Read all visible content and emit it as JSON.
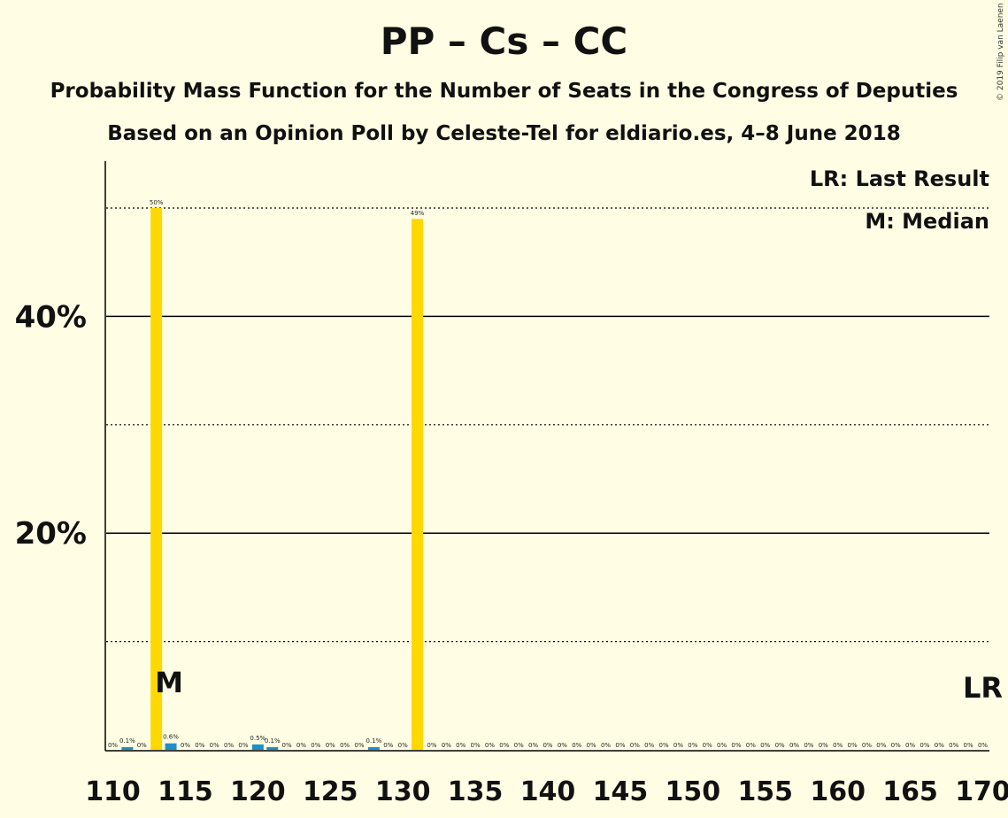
{
  "chart_data": {
    "type": "bar",
    "title": "PP – Cs – CC",
    "subtitle": "Probability Mass Function for the Number of Seats in the Congress of Deputies",
    "subtitle2": "Based on an Opinion Poll by Celeste-Tel for eldiario.es, 4–8 June 2018",
    "copyright": "© 2019 Filip van Laenen",
    "legend": {
      "lr": "LR: Last Result",
      "m": "M: Median",
      "position": "top-right"
    },
    "markers": {
      "median_label": "M",
      "median_seat": 114,
      "lr_label": "LR",
      "lr_seat": 170
    },
    "xlim": [
      110,
      170
    ],
    "ylim": [
      0,
      54
    ],
    "x_ticks": [
      110,
      115,
      120,
      125,
      130,
      135,
      140,
      145,
      150,
      155,
      160,
      165,
      170
    ],
    "y_ticks_labeled": [
      {
        "value": 20,
        "label": "20%"
      },
      {
        "value": 40,
        "label": "40%"
      }
    ],
    "y_gridlines_dotted": [
      10,
      30,
      50
    ],
    "colors": {
      "main": "#FFD800",
      "minor": "#1E8FC8",
      "background": "#FFFEE4",
      "axis": "#000000"
    },
    "bars": [
      {
        "x": 110,
        "value": 0,
        "label": "0%"
      },
      {
        "x": 111,
        "value": 0.1,
        "label": "0.1%"
      },
      {
        "x": 112,
        "value": 0,
        "label": "0%"
      },
      {
        "x": 113,
        "value": 50,
        "label": "50%"
      },
      {
        "x": 114,
        "value": 0.6,
        "label": "0.6%"
      },
      {
        "x": 115,
        "value": 0,
        "label": "0%"
      },
      {
        "x": 116,
        "value": 0,
        "label": "0%"
      },
      {
        "x": 117,
        "value": 0,
        "label": "0%"
      },
      {
        "x": 118,
        "value": 0,
        "label": "0%"
      },
      {
        "x": 119,
        "value": 0,
        "label": "0%"
      },
      {
        "x": 120,
        "value": 0.5,
        "label": "0.5%"
      },
      {
        "x": 121,
        "value": 0.1,
        "label": "0.1%"
      },
      {
        "x": 122,
        "value": 0,
        "label": "0%"
      },
      {
        "x": 123,
        "value": 0,
        "label": "0%"
      },
      {
        "x": 124,
        "value": 0,
        "label": "0%"
      },
      {
        "x": 125,
        "value": 0,
        "label": "0%"
      },
      {
        "x": 126,
        "value": 0,
        "label": "0%"
      },
      {
        "x": 127,
        "value": 0,
        "label": "0%"
      },
      {
        "x": 128,
        "value": 0.1,
        "label": "0.1%"
      },
      {
        "x": 129,
        "value": 0,
        "label": "0%"
      },
      {
        "x": 130,
        "value": 0,
        "label": "0%"
      },
      {
        "x": 131,
        "value": 49,
        "label": "49%"
      },
      {
        "x": 132,
        "value": 0,
        "label": "0%"
      },
      {
        "x": 133,
        "value": 0,
        "label": "0%"
      },
      {
        "x": 134,
        "value": 0,
        "label": "0%"
      },
      {
        "x": 135,
        "value": 0,
        "label": "0%"
      },
      {
        "x": 136,
        "value": 0,
        "label": "0%"
      },
      {
        "x": 137,
        "value": 0,
        "label": "0%"
      },
      {
        "x": 138,
        "value": 0,
        "label": "0%"
      },
      {
        "x": 139,
        "value": 0,
        "label": "0%"
      },
      {
        "x": 140,
        "value": 0,
        "label": "0%"
      },
      {
        "x": 141,
        "value": 0,
        "label": "0%"
      },
      {
        "x": 142,
        "value": 0,
        "label": "0%"
      },
      {
        "x": 143,
        "value": 0,
        "label": "0%"
      },
      {
        "x": 144,
        "value": 0,
        "label": "0%"
      },
      {
        "x": 145,
        "value": 0,
        "label": "0%"
      },
      {
        "x": 146,
        "value": 0,
        "label": "0%"
      },
      {
        "x": 147,
        "value": 0,
        "label": "0%"
      },
      {
        "x": 148,
        "value": 0,
        "label": "0%"
      },
      {
        "x": 149,
        "value": 0,
        "label": "0%"
      },
      {
        "x": 150,
        "value": 0,
        "label": "0%"
      },
      {
        "x": 151,
        "value": 0,
        "label": "0%"
      },
      {
        "x": 152,
        "value": 0,
        "label": "0%"
      },
      {
        "x": 153,
        "value": 0,
        "label": "0%"
      },
      {
        "x": 154,
        "value": 0,
        "label": "0%"
      },
      {
        "x": 155,
        "value": 0,
        "label": "0%"
      },
      {
        "x": 156,
        "value": 0,
        "label": "0%"
      },
      {
        "x": 157,
        "value": 0,
        "label": "0%"
      },
      {
        "x": 158,
        "value": 0,
        "label": "0%"
      },
      {
        "x": 159,
        "value": 0,
        "label": "0%"
      },
      {
        "x": 160,
        "value": 0,
        "label": "0%"
      },
      {
        "x": 161,
        "value": 0,
        "label": "0%"
      },
      {
        "x": 162,
        "value": 0,
        "label": "0%"
      },
      {
        "x": 163,
        "value": 0,
        "label": "0%"
      },
      {
        "x": 164,
        "value": 0,
        "label": "0%"
      },
      {
        "x": 165,
        "value": 0,
        "label": "0%"
      },
      {
        "x": 166,
        "value": 0,
        "label": "0%"
      },
      {
        "x": 167,
        "value": 0,
        "label": "0%"
      },
      {
        "x": 168,
        "value": 0,
        "label": "0%"
      },
      {
        "x": 169,
        "value": 0,
        "label": "0%"
      },
      {
        "x": 170,
        "value": 0,
        "label": "0%"
      }
    ]
  }
}
